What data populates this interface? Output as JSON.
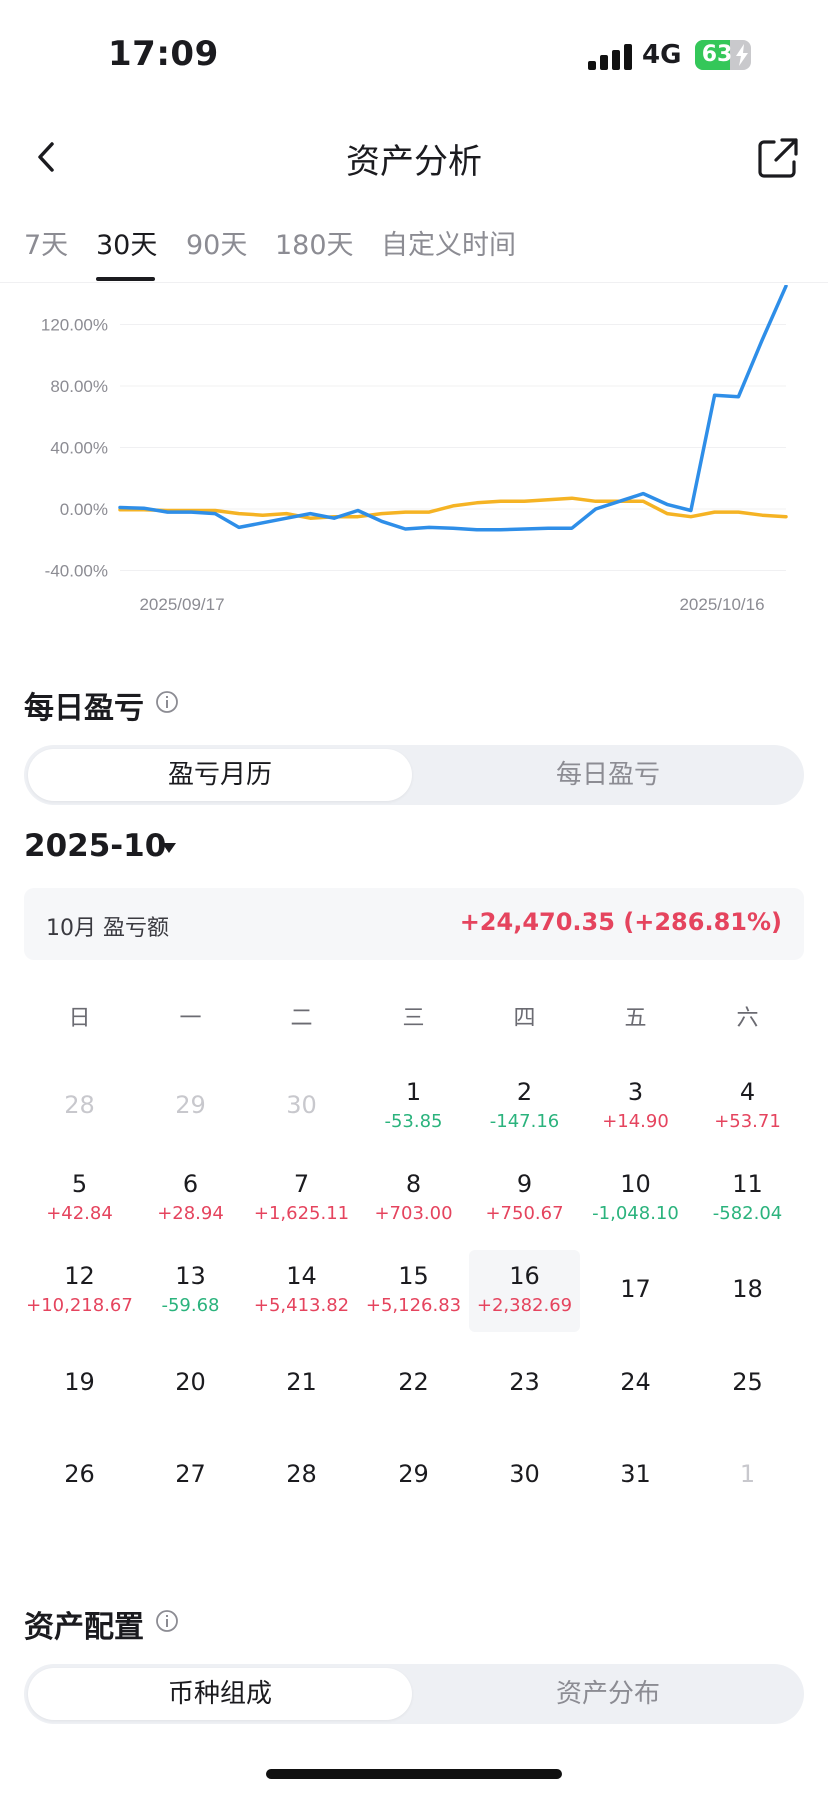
{
  "status": {
    "time": "17:09",
    "network": "4G",
    "battery": "63",
    "battery_level": 0.63
  },
  "header": {
    "title": "资产分析"
  },
  "tabs": [
    {
      "label": "7天",
      "active": false
    },
    {
      "label": "30天",
      "active": true
    },
    {
      "label": "90天",
      "active": false
    },
    {
      "label": "180天",
      "active": false
    },
    {
      "label": "自定义时间",
      "active": false
    }
  ],
  "chart_data": {
    "type": "line",
    "y_tick_labels": [
      "120.00%",
      "80.00%",
      "40.00%",
      "0.00%",
      "-40.00%"
    ],
    "y_ticks": [
      120,
      80,
      40,
      0,
      -40
    ],
    "x_start_label": "2025/09/17",
    "x_end_label": "2025/10/16",
    "ylim": [
      -40,
      145
    ],
    "grid": true,
    "colors": {
      "series_1": "#2e8ee8",
      "series_2": "#f5b324"
    },
    "series": [
      {
        "values": [
          1,
          0.5,
          -2,
          -2,
          -3,
          -12,
          -9,
          -6,
          -3,
          -6,
          -1,
          -8,
          -13,
          -12,
          -12.5,
          -13.5,
          -13.5,
          -13,
          -12.5,
          -12.5,
          0,
          5,
          10,
          3,
          -1,
          74,
          73,
          110,
          145
        ]
      },
      {
        "values": [
          -0.5,
          -0.5,
          -1,
          -1,
          -1,
          -3,
          -4,
          -3,
          -6,
          -5,
          -5,
          -3,
          -2,
          -2,
          2,
          4,
          5,
          5,
          6,
          7,
          5,
          5,
          5,
          -3,
          -5,
          -2,
          -2,
          -4,
          -5
        ]
      }
    ]
  },
  "daily_pnl": {
    "title": "每日盈亏",
    "toggle": {
      "active": "盈亏月历",
      "inactive": "每日盈亏"
    },
    "month": "2025-10",
    "summary_label": "10月 盈亏额",
    "summary_value": "+24,470.35 (+286.81%)",
    "weekdays": [
      "日",
      "一",
      "二",
      "三",
      "四",
      "五",
      "六"
    ],
    "days": [
      {
        "day": "28",
        "muted": true,
        "pnl": ""
      },
      {
        "day": "29",
        "muted": true,
        "pnl": ""
      },
      {
        "day": "30",
        "muted": true,
        "pnl": ""
      },
      {
        "day": "1",
        "pnl": "-53.85",
        "sign": "neg"
      },
      {
        "day": "2",
        "pnl": "-147.16",
        "sign": "neg"
      },
      {
        "day": "3",
        "pnl": "+14.90",
        "sign": "pos"
      },
      {
        "day": "4",
        "pnl": "+53.71",
        "sign": "pos"
      },
      {
        "day": "5",
        "pnl": "+42.84",
        "sign": "pos"
      },
      {
        "day": "6",
        "pnl": "+28.94",
        "sign": "pos"
      },
      {
        "day": "7",
        "pnl": "+1,625.11",
        "sign": "pos"
      },
      {
        "day": "8",
        "pnl": "+703.00",
        "sign": "pos"
      },
      {
        "day": "9",
        "pnl": "+750.67",
        "sign": "pos"
      },
      {
        "day": "10",
        "pnl": "-1,048.10",
        "sign": "neg"
      },
      {
        "day": "11",
        "pnl": "-582.04",
        "sign": "neg"
      },
      {
        "day": "12",
        "pnl": "+10,218.67",
        "sign": "pos"
      },
      {
        "day": "13",
        "pnl": "-59.68",
        "sign": "neg"
      },
      {
        "day": "14",
        "pnl": "+5,413.82",
        "sign": "pos"
      },
      {
        "day": "15",
        "pnl": "+5,126.83",
        "sign": "pos"
      },
      {
        "day": "16",
        "pnl": "+2,382.69",
        "sign": "pos",
        "highlight": true
      },
      {
        "day": "17",
        "pnl": ""
      },
      {
        "day": "18",
        "pnl": ""
      },
      {
        "day": "19",
        "pnl": ""
      },
      {
        "day": "20",
        "pnl": ""
      },
      {
        "day": "21",
        "pnl": ""
      },
      {
        "day": "22",
        "pnl": ""
      },
      {
        "day": "23",
        "pnl": ""
      },
      {
        "day": "24",
        "pnl": ""
      },
      {
        "day": "25",
        "pnl": ""
      },
      {
        "day": "26",
        "pnl": ""
      },
      {
        "day": "27",
        "pnl": ""
      },
      {
        "day": "28",
        "pnl": ""
      },
      {
        "day": "29",
        "pnl": ""
      },
      {
        "day": "30",
        "pnl": ""
      },
      {
        "day": "31",
        "pnl": ""
      },
      {
        "day": "1",
        "muted": true,
        "pnl": ""
      }
    ]
  },
  "allocation": {
    "title": "资产配置",
    "toggle": {
      "active": "币种组成",
      "inactive": "资产分布"
    }
  }
}
